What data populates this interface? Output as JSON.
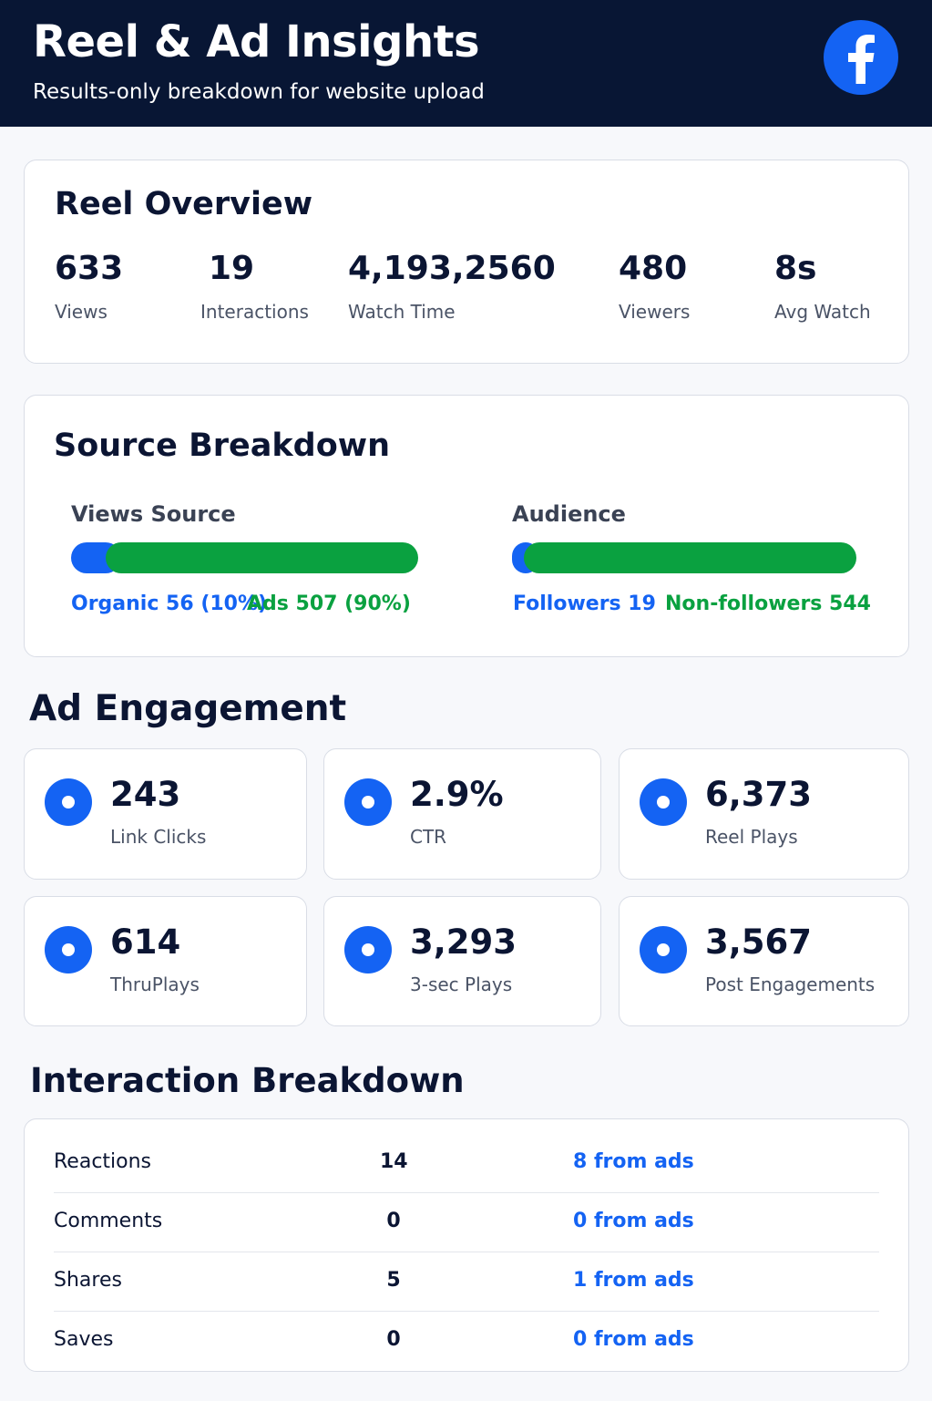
{
  "header": {
    "title": "Reel & Ad Insights",
    "subtitle": "Results-only breakdown for website upload",
    "logo_icon": "facebook-logo-icon"
  },
  "colors": {
    "header_bg": "#081634",
    "accent_blue": "#1463f3",
    "accent_green": "#0aa140"
  },
  "reel_overview": {
    "title": "Reel Overview",
    "stats": [
      {
        "value": "633",
        "label": "Views"
      },
      {
        "value": "19",
        "label": "Interactions"
      },
      {
        "value": "4,193,2560",
        "label": "Watch Time"
      },
      {
        "value": "480",
        "label": "Viewers"
      },
      {
        "value": "8s",
        "label": "Avg Watch"
      }
    ]
  },
  "source_breakdown": {
    "title": "Source Breakdown",
    "views_source": {
      "label": "Views Source",
      "organic_text": "Organic 56 (10%)",
      "ads_text": "Ads 507 (90%)",
      "organic_share": 0.1,
      "ads_share": 0.9
    },
    "audience": {
      "label": "Audience",
      "followers_text": "Followers 19",
      "nonfollowers_text": "Non-followers 544",
      "followers_share": 0.034,
      "nonfollowers_share": 0.966
    }
  },
  "ad_engagement": {
    "title": "Ad Engagement",
    "kpis": [
      {
        "value": "243",
        "label": "Link Clicks",
        "icon": "dot-icon"
      },
      {
        "value": "2.9%",
        "label": "CTR",
        "icon": "dot-icon"
      },
      {
        "value": "6,373",
        "label": "Reel Plays",
        "icon": "dot-icon"
      },
      {
        "value": "614",
        "label": "ThruPlays",
        "icon": "dot-icon"
      },
      {
        "value": "3,293",
        "label": "3-sec Plays",
        "icon": "dot-icon"
      },
      {
        "value": "3,567",
        "label": "Post Engagements",
        "icon": "dot-icon"
      }
    ]
  },
  "interaction_breakdown": {
    "title": "Interaction Breakdown",
    "rows": [
      {
        "name": "Reactions",
        "count": "14",
        "ads": "8 from ads"
      },
      {
        "name": "Comments",
        "count": "0",
        "ads": "0 from ads"
      },
      {
        "name": "Shares",
        "count": "5",
        "ads": "1 from ads"
      },
      {
        "name": "Saves",
        "count": "0",
        "ads": "0 from ads"
      }
    ]
  }
}
